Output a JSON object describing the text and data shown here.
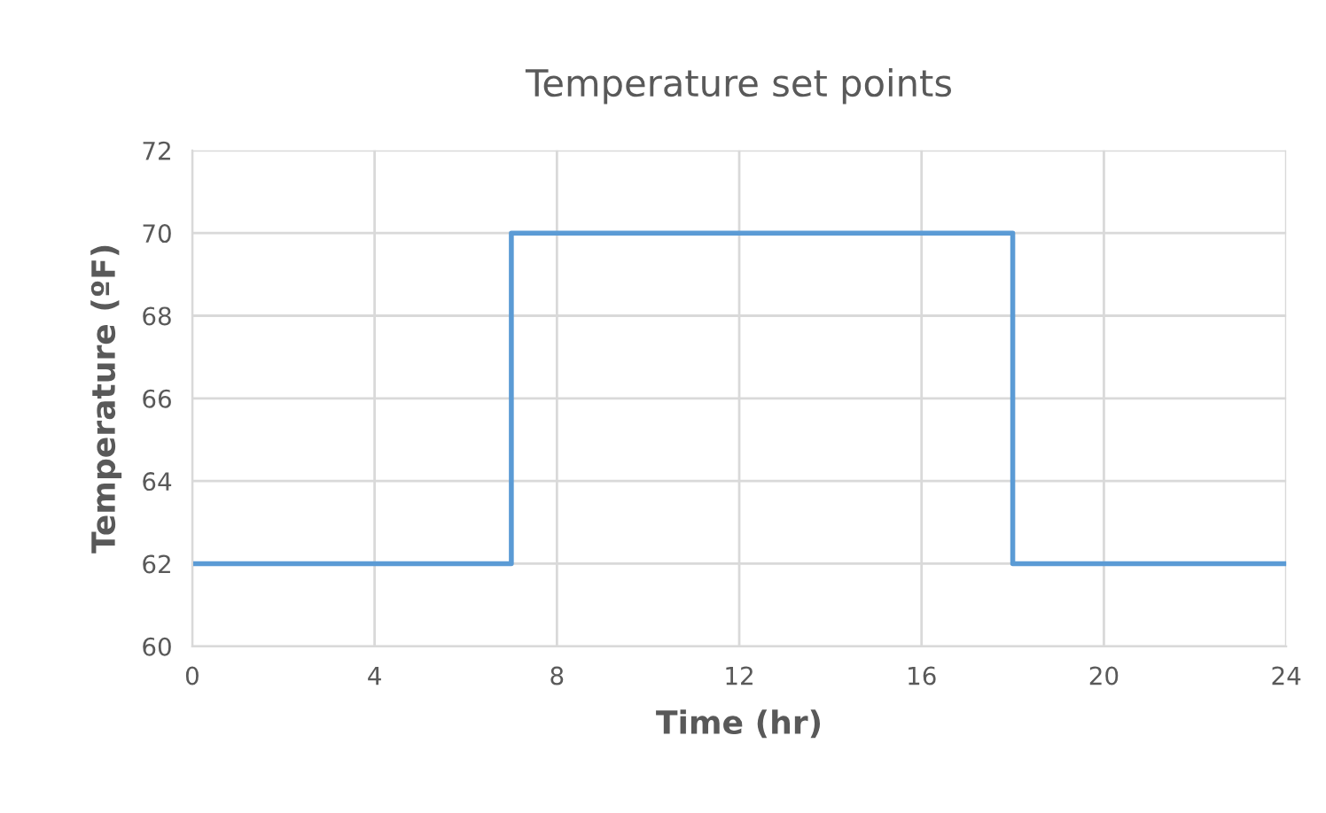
{
  "chart_data": {
    "type": "step",
    "title": "Temperature set points",
    "xlabel": "Time (hr)",
    "ylabel": "Temperature (ºF)",
    "x": [
      0,
      7,
      18,
      24
    ],
    "series": [
      {
        "color": "#5b9bd5",
        "values": [
          62,
          70,
          62,
          62
        ]
      }
    ],
    "xlim": [
      0,
      24
    ],
    "xticks": [
      0,
      4,
      8,
      12,
      16,
      20,
      24
    ],
    "ylim": [
      60,
      72
    ],
    "yticks": [
      60,
      62,
      64,
      66,
      68,
      70,
      72
    ],
    "grid": true,
    "legend": false
  }
}
